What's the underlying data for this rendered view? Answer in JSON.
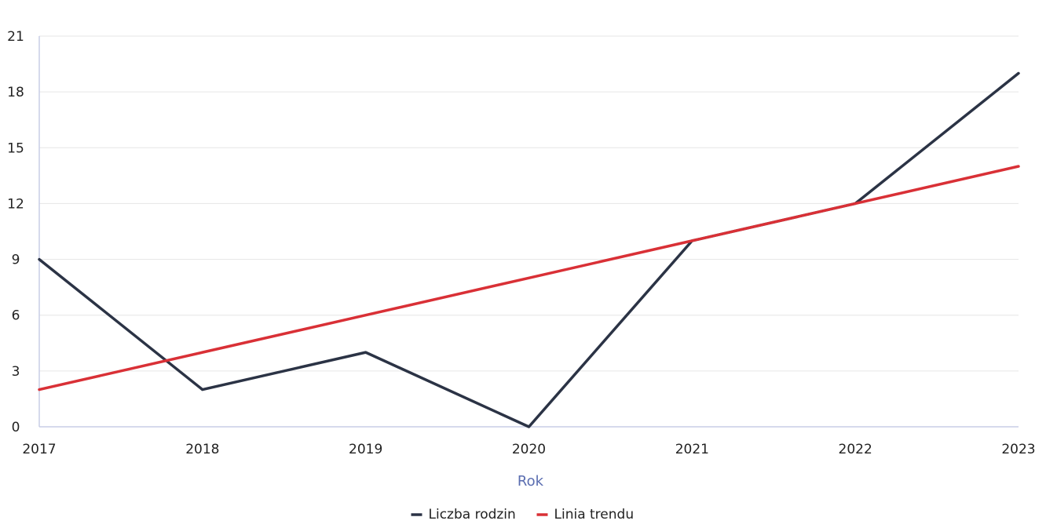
{
  "chart_data": {
    "type": "line",
    "title": "",
    "xlabel": "Rok",
    "ylabel": "",
    "categories": [
      "2017",
      "2018",
      "2019",
      "2020",
      "2021",
      "2022",
      "2023"
    ],
    "ylim": [
      0,
      21
    ],
    "yticks": [
      "0",
      "3",
      "6",
      "9",
      "12",
      "15",
      "18",
      "21"
    ],
    "grid": true,
    "legend_position": "bottom-center",
    "series": [
      {
        "name": "Liczba rodzin",
        "color": "#2b3345",
        "values": [
          9,
          2,
          4,
          0,
          10,
          12,
          19
        ]
      },
      {
        "name": "Linia trendu",
        "color": "#d93036",
        "values": [
          2,
          4,
          6,
          8,
          10,
          12,
          14
        ]
      }
    ]
  }
}
